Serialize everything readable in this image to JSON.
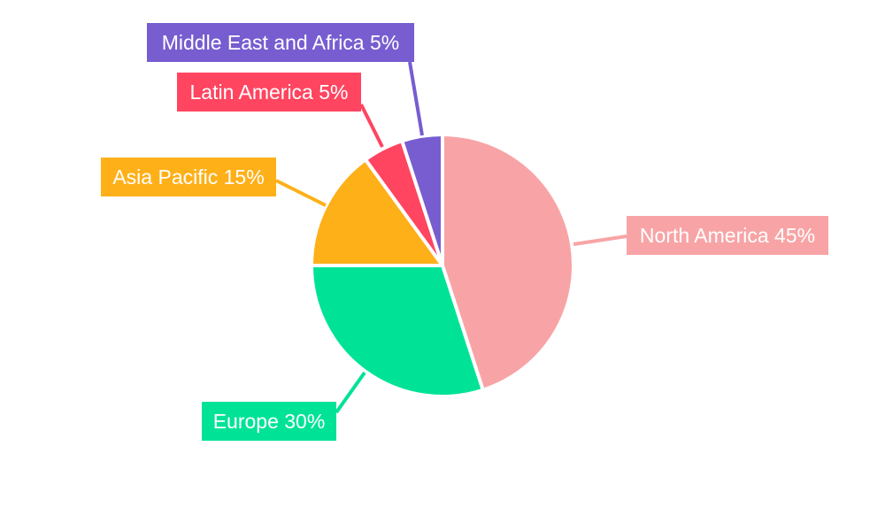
{
  "chart_data": {
    "type": "pie",
    "title": "",
    "start_angle": "top, clockwise",
    "legend": "none",
    "slices": [
      {
        "label": "North America",
        "value": 45,
        "text": "North America 45%",
        "color": "#f8a4a6"
      },
      {
        "label": "Europe",
        "value": 30,
        "text": "Europe 30%",
        "color": "#00e396"
      },
      {
        "label": "Asia Pacific",
        "value": 15,
        "text": "Asia Pacific 15%",
        "color": "#feb019"
      },
      {
        "label": "Latin America",
        "value": 5,
        "text": "Latin America 5%",
        "color": "#ff4560"
      },
      {
        "label": "Middle East and Africa",
        "value": 5,
        "text": "Middle East and Africa 5%",
        "color": "#775dd0"
      }
    ]
  }
}
